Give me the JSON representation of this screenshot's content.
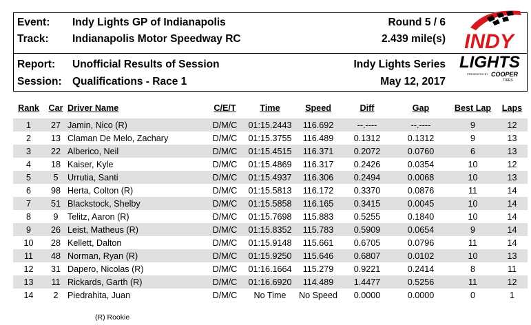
{
  "header": {
    "event_label": "Event:",
    "event_value": "Indy Lights GP of Indianapolis",
    "track_label": "Track:",
    "track_value": "Indianapolis Motor Speedway RC",
    "round": "Round 5 / 6",
    "length": "2.439 mile(s)",
    "report_label": "Report:",
    "report_value": "Unofficial Results of Session",
    "session_label": "Session:",
    "session_value": "Qualifications - Race 1",
    "series": "Indy Lights Series",
    "date": "May 12, 2017"
  },
  "logo": {
    "top_text": "INDY",
    "bottom_text": "LIGHTS",
    "presented": "PRESENTED BY",
    "sponsor": "COOPER",
    "sponsor_sub": "TIRES",
    "colors": {
      "red": "#d71920",
      "black": "#000000"
    }
  },
  "table": {
    "columns": [
      "Rank",
      "Car",
      "Driver Name",
      "C/E/T",
      "Time",
      "Speed",
      "Diff",
      "Gap",
      "Best Lap",
      "Laps"
    ],
    "rows": [
      [
        "1",
        "27",
        "Jamin, Nico (R)",
        "D/M/C",
        "01:15.2443",
        "116.692",
        "--.----",
        "--.----",
        "9",
        "12"
      ],
      [
        "2",
        "13",
        "Claman De Melo, Zachary",
        "D/M/C",
        "01:15.3755",
        "116.489",
        "0.1312",
        "0.1312",
        "9",
        "13"
      ],
      [
        "3",
        "22",
        "Alberico, Neil",
        "D/M/C",
        "01:15.4515",
        "116.371",
        "0.2072",
        "0.0760",
        "6",
        "13"
      ],
      [
        "4",
        "18",
        "Kaiser, Kyle",
        "D/M/C",
        "01:15.4869",
        "116.317",
        "0.2426",
        "0.0354",
        "10",
        "12"
      ],
      [
        "5",
        "5",
        "Urrutia, Santi",
        "D/M/C",
        "01:15.4937",
        "116.306",
        "0.2494",
        "0.0068",
        "10",
        "13"
      ],
      [
        "6",
        "98",
        "Herta, Colton (R)",
        "D/M/C",
        "01:15.5813",
        "116.172",
        "0.3370",
        "0.0876",
        "11",
        "14"
      ],
      [
        "7",
        "51",
        "Blackstock, Shelby",
        "D/M/C",
        "01:15.5858",
        "116.165",
        "0.3415",
        "0.0045",
        "10",
        "14"
      ],
      [
        "8",
        "9",
        "Telitz, Aaron (R)",
        "D/M/C",
        "01:15.7698",
        "115.883",
        "0.5255",
        "0.1840",
        "10",
        "14"
      ],
      [
        "9",
        "26",
        "Leist, Matheus (R)",
        "D/M/C",
        "01:15.8352",
        "115.783",
        "0.5909",
        "0.0654",
        "9",
        "14"
      ],
      [
        "10",
        "28",
        "Kellett, Dalton",
        "D/M/C",
        "01:15.9148",
        "115.661",
        "0.6705",
        "0.0796",
        "11",
        "14"
      ],
      [
        "11",
        "48",
        "Norman, Ryan (R)",
        "D/M/C",
        "01:15.9250",
        "115.646",
        "0.6807",
        "0.0102",
        "10",
        "13"
      ],
      [
        "12",
        "31",
        "Dapero, Nicolas (R)",
        "D/M/C",
        "01:16.1664",
        "115.279",
        "0.9221",
        "0.2414",
        "8",
        "11"
      ],
      [
        "13",
        "11",
        "Rickards, Garth (R)",
        "D/M/C",
        "01:16.6920",
        "114.489",
        "1.4477",
        "0.5256",
        "11",
        "12"
      ],
      [
        "14",
        "2",
        "Piedrahita, Juan",
        "D/M/C",
        "No Time",
        "No Speed",
        "0.0000",
        "0.0000",
        "0",
        "1"
      ]
    ]
  },
  "footnote": "(R) Rookie"
}
